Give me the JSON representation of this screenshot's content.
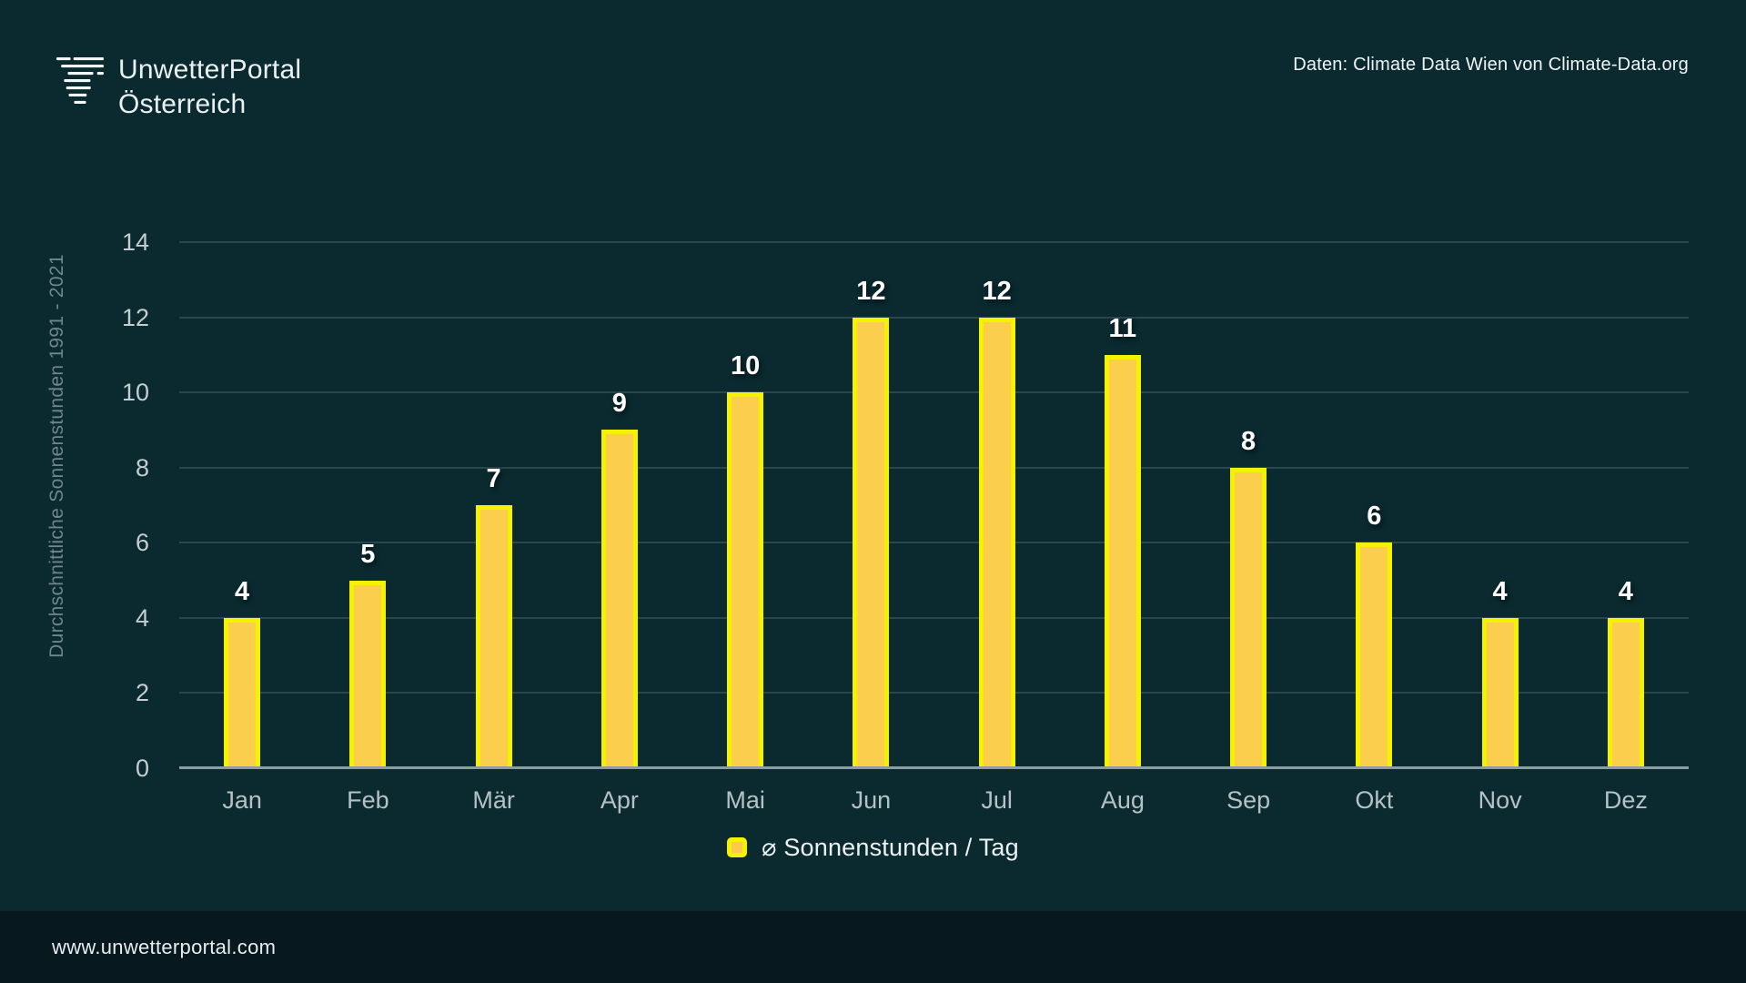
{
  "header": {
    "brand_line1": "UnwetterPortal",
    "brand_line2": "Österreich",
    "attribution": "Daten: Climate Data Wien von Climate-Data.org"
  },
  "chart_data": {
    "type": "bar",
    "title": "",
    "categories": [
      "Jan",
      "Feb",
      "Mär",
      "Apr",
      "Mai",
      "Jun",
      "Jul",
      "Aug",
      "Sep",
      "Okt",
      "Nov",
      "Dez"
    ],
    "values": [
      4,
      5,
      7,
      9,
      10,
      12,
      12,
      11,
      8,
      6,
      4,
      4
    ],
    "xlabel": "",
    "ylabel": "Durchschnittliche Sonnenstunden 1991 - 2021",
    "ylim": [
      0,
      14
    ],
    "yticks": [
      0,
      2,
      4,
      6,
      8,
      10,
      12,
      14
    ],
    "grid": true,
    "data_labels": true,
    "legend": {
      "label": "⌀ Sonnenstunden / Tag",
      "position": "bottom"
    }
  },
  "footer": {
    "website": "www.unwetterportal.com"
  },
  "colors": {
    "background": "#0A2A30",
    "footer_background": "#07181E",
    "bar_fill": "#FCCE4E",
    "bar_border": "#F5F200",
    "gridline": "#2C464D",
    "axis_line": "#8C9EA4",
    "tick_text": "#C4CDD0",
    "month_text": "#B5C1C4",
    "ylabel_text": "#6E868C",
    "value_label_text": "#FFFFFF",
    "brand_text": "#EAF1F1"
  }
}
